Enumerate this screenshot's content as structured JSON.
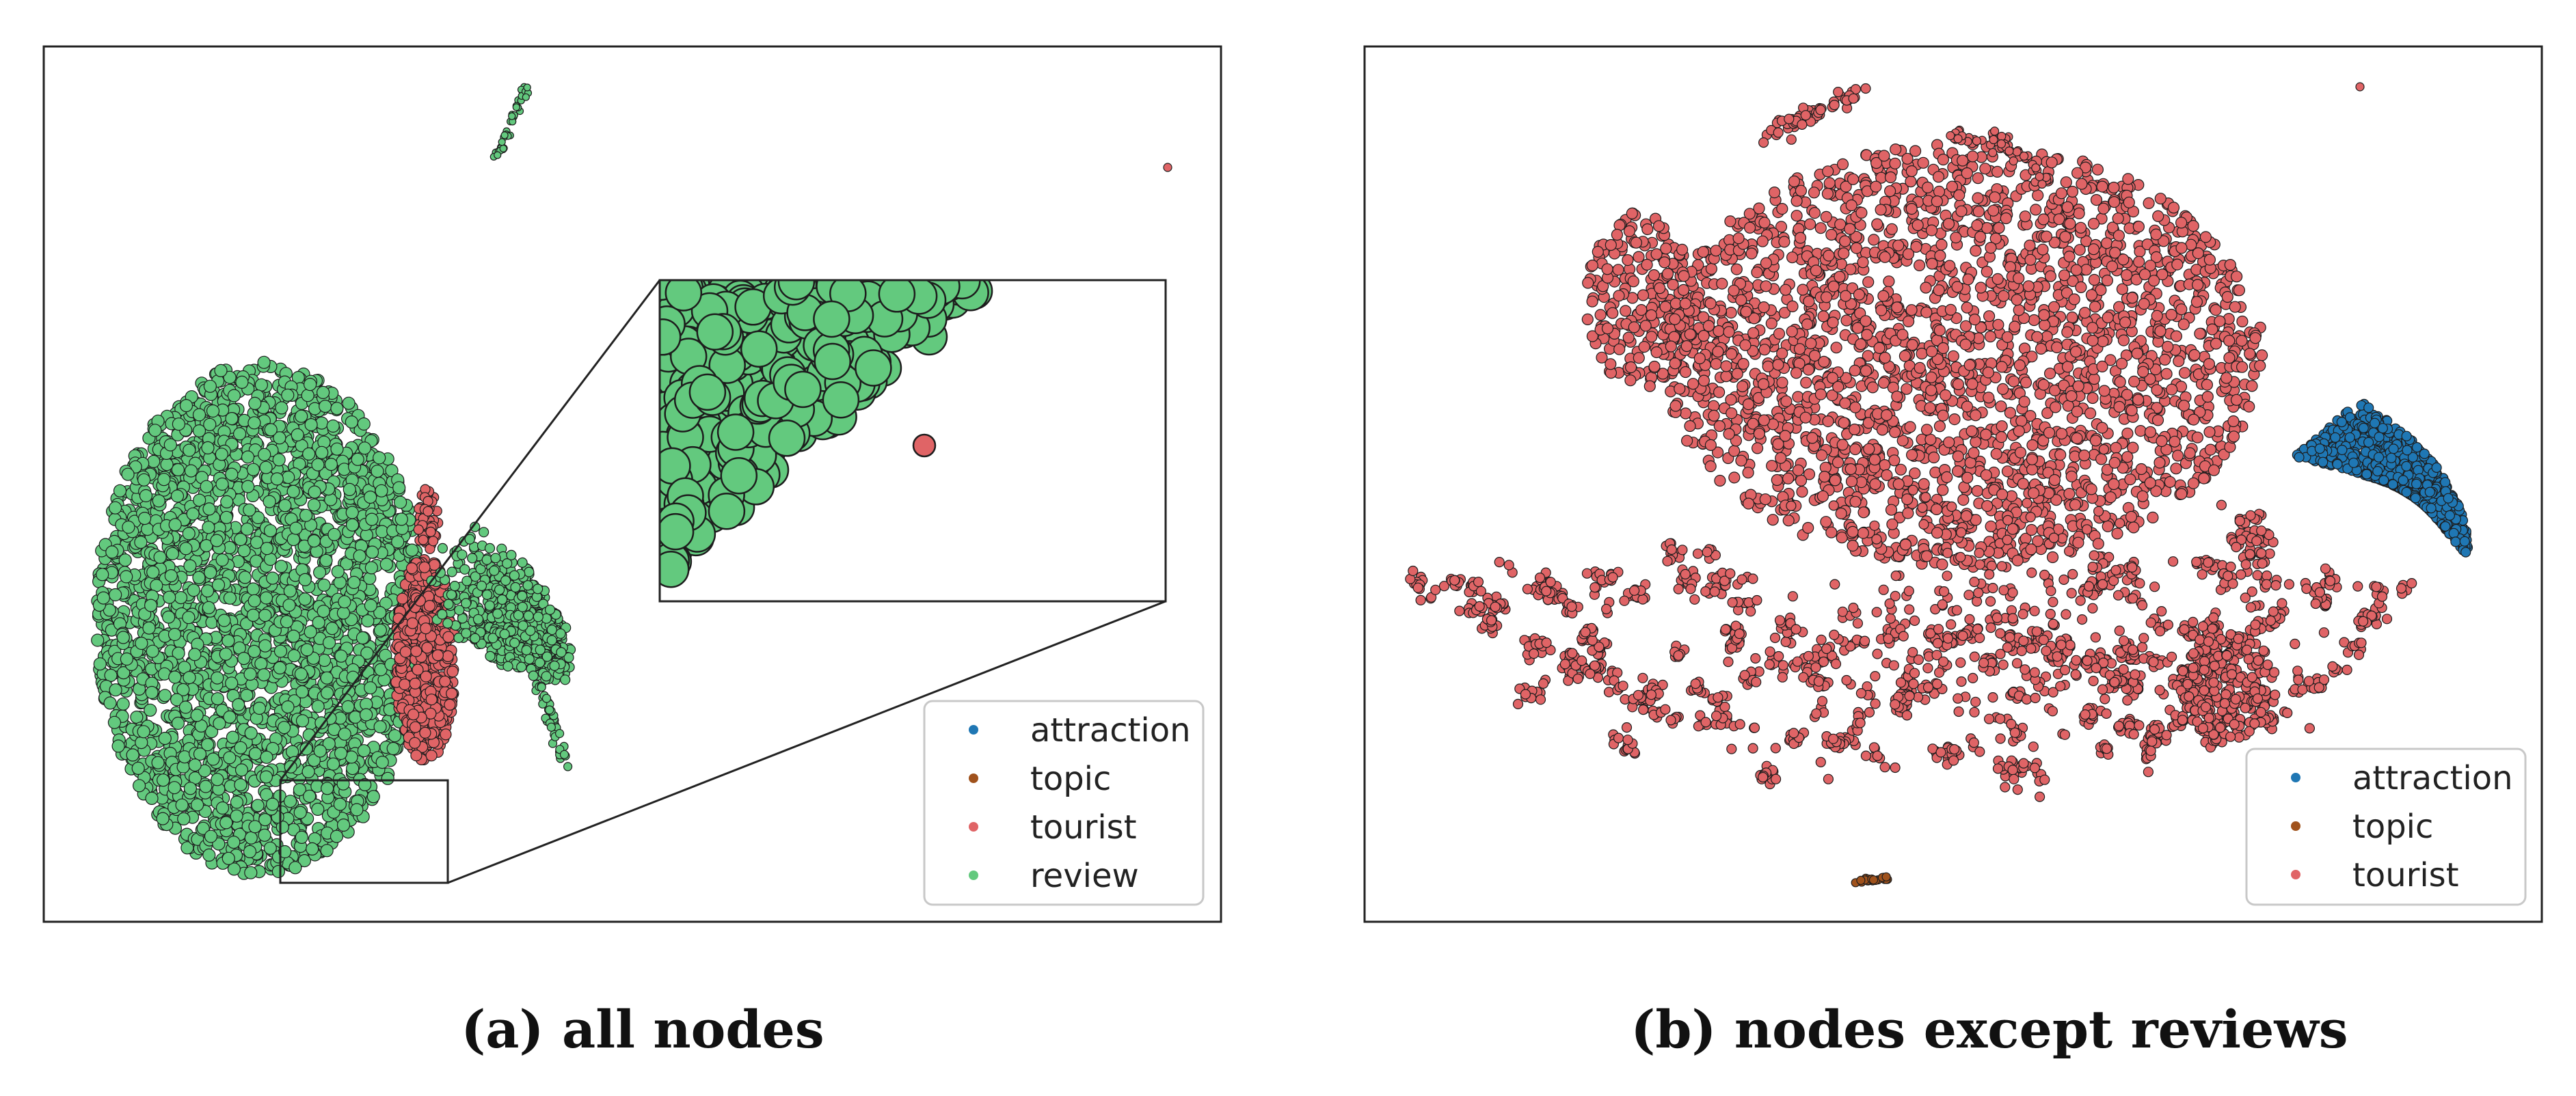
{
  "colors": {
    "attraction": "#1f77b4",
    "topic": "#a0521c",
    "tourist": "#e06466",
    "review": "#63c97e",
    "edge": "#1d1d1d"
  },
  "captions": {
    "a": "(a) all nodes",
    "b": "(b) nodes except reviews"
  },
  "chart_data": [
    {
      "type": "scatter",
      "panel": "a",
      "title": "",
      "xlabel": "",
      "ylabel": "",
      "grid": false,
      "axis_ticks": false,
      "legend_position": "bottom-right",
      "legend": [
        {
          "label": "attraction",
          "color": "#1f77b4"
        },
        {
          "label": "topic",
          "color": "#a0521c"
        },
        {
          "label": "tourist",
          "color": "#e06466"
        },
        {
          "label": "review",
          "color": "#63c97e"
        }
      ],
      "inset": {
        "type": "zoom",
        "shows": "close-up of review points at the lower edge of the main review cluster"
      },
      "series": [
        {
          "name": "review",
          "clusters": [
            "large ellipse (left)",
            "lobe (right of center)",
            "thin streak (top)"
          ]
        },
        {
          "name": "tourist",
          "clusters": [
            "band between review clusters",
            "single outlier (top right)"
          ]
        },
        {
          "name": "attraction",
          "clusters": []
        },
        {
          "name": "topic",
          "clusters": []
        }
      ]
    },
    {
      "type": "scatter",
      "panel": "b",
      "title": "",
      "xlabel": "",
      "ylabel": "",
      "grid": false,
      "axis_ticks": false,
      "legend_position": "bottom-right",
      "legend": [
        {
          "label": "attraction",
          "color": "#1f77b4"
        },
        {
          "label": "topic",
          "color": "#a0521c"
        },
        {
          "label": "tourist",
          "color": "#e06466"
        }
      ],
      "series": [
        {
          "name": "tourist",
          "clusters": [
            "large dense cloud (upper center)",
            "scattered small clusters (lower half)",
            "cluster (lower right)",
            "single outlier (top right)"
          ]
        },
        {
          "name": "attraction",
          "clusters": [
            "fan-shaped cluster (right)"
          ]
        },
        {
          "name": "topic",
          "clusters": [
            "small streak (bottom)"
          ]
        }
      ]
    }
  ]
}
